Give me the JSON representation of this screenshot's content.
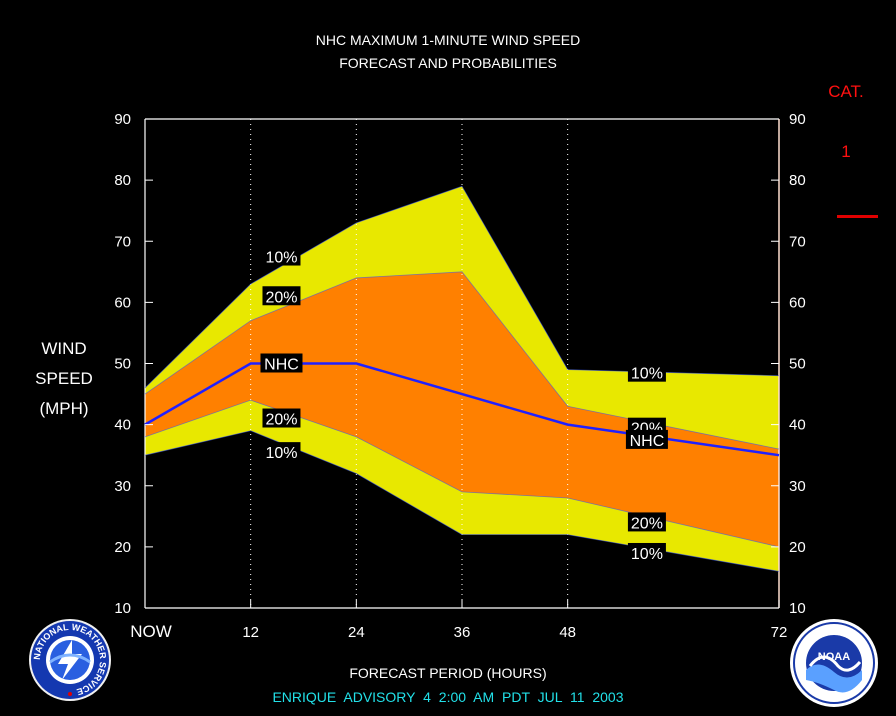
{
  "title_line1": "NHC MAXIMUM 1-MINUTE WIND SPEED",
  "title_line2": "FORECAST AND PROBABILITIES",
  "ylabel_lines": [
    "WIND",
    "SPEED",
    "(MPH)"
  ],
  "category_label": "CAT.",
  "category_value": "1",
  "xlabel": "FORECAST PERIOD (HOURS)",
  "advisory": "ENRIQUE ADVISORY 4 2:00 AM PDT JUL 11 2003",
  "logos": {
    "nws": {
      "name": "national-weather-service-logo",
      "text": "NATIONAL WEATHER SERVICE"
    },
    "noaa": {
      "name": "noaa-logo",
      "text": "NOAA"
    }
  },
  "colors": {
    "band_10": "#e8e800",
    "band_20": "#ff8000",
    "nhc_line": "#2020ff",
    "category_line": "#e00000",
    "advisory_text": "#22e0e8"
  },
  "chart_data": {
    "type": "area",
    "x": [
      0,
      12,
      24,
      36,
      48,
      72
    ],
    "xticks": [
      {
        "value": 0,
        "label": "NOW"
      },
      {
        "value": 12,
        "label": "12"
      },
      {
        "value": 24,
        "label": "24"
      },
      {
        "value": 36,
        "label": "36"
      },
      {
        "value": 48,
        "label": "48"
      },
      {
        "value": 72,
        "label": "72"
      }
    ],
    "xlim": [
      0,
      72
    ],
    "ylim": [
      10,
      90
    ],
    "yticks": [
      10,
      20,
      30,
      40,
      50,
      60,
      70,
      80,
      90
    ],
    "ylabel": "WIND SPEED (MPH)",
    "xlabel": "FORECAST PERIOD (HOURS)",
    "grid": "vertical-dotted",
    "series": [
      {
        "name": "10% upper",
        "values": [
          46,
          63,
          73,
          79,
          49,
          48
        ]
      },
      {
        "name": "20% upper",
        "values": [
          45,
          57,
          64,
          65,
          43,
          36
        ]
      },
      {
        "name": "NHC",
        "values": [
          40,
          50,
          50,
          45,
          40,
          35
        ]
      },
      {
        "name": "20% lower",
        "values": [
          38,
          44,
          38,
          29,
          28,
          20
        ]
      },
      {
        "name": "10% lower",
        "values": [
          35,
          39,
          32,
          22,
          22,
          16
        ]
      }
    ],
    "labels": [
      {
        "text": "10%",
        "x": 15.5,
        "y": 67.5
      },
      {
        "text": "20%",
        "x": 15.5,
        "y": 61
      },
      {
        "text": "NHC",
        "x": 15.5,
        "y": 50
      },
      {
        "text": "20%",
        "x": 15.5,
        "y": 41
      },
      {
        "text": "10%",
        "x": 15.5,
        "y": 35.5
      },
      {
        "text": "10%",
        "x": 57,
        "y": 48.5
      },
      {
        "text": "20%",
        "x": 57,
        "y": 39.5
      },
      {
        "text": "NHC",
        "x": 57,
        "y": 37.5
      },
      {
        "text": "20%",
        "x": 57,
        "y": 24
      },
      {
        "text": "10%",
        "x": 57,
        "y": 19
      }
    ]
  }
}
